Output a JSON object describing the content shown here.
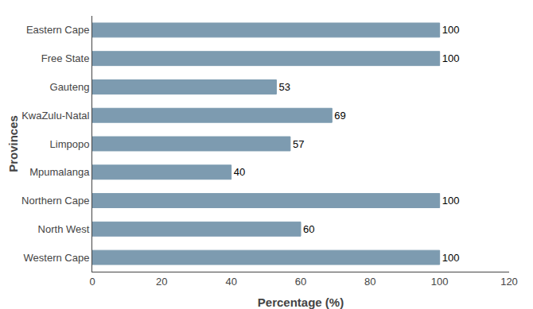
{
  "chart_data": {
    "type": "bar",
    "orientation": "horizontal",
    "categories": [
      "Western Cape",
      "North West",
      "Northern Cape",
      "Mpumalanga",
      "Limpopo",
      "KwaZulu-Natal",
      "Gauteng",
      "Free State",
      "Eastern Cape"
    ],
    "values": [
      100,
      60,
      100,
      40,
      57,
      69,
      53,
      100,
      100
    ],
    "color": "#7d9bb0",
    "xlabel": "Percentage (%)",
    "ylabel": "Provinces",
    "xlim": [
      0,
      120
    ],
    "xticks": [
      0,
      20,
      40,
      60,
      80,
      100,
      120
    ],
    "grid": false,
    "data_labels": true
  }
}
